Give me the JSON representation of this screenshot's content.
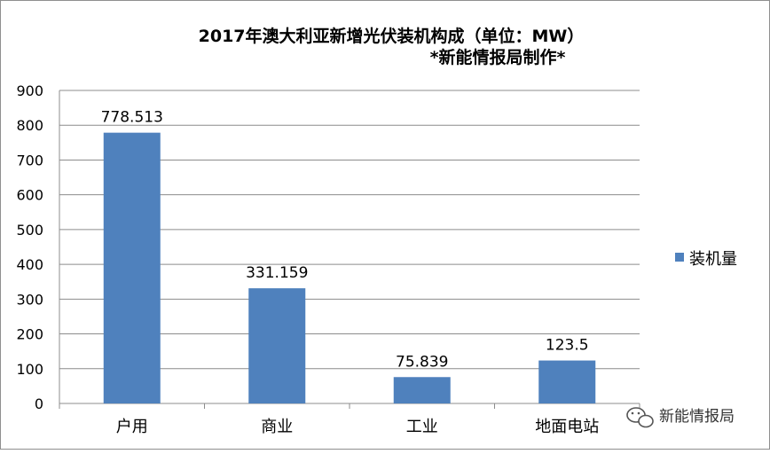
{
  "chart_data": {
    "type": "bar",
    "title": "2017年澳大利亚新增光伏装机构成（单位：MW）",
    "subtitle": "*新能情报局制作*",
    "categories": [
      "户用",
      "商业",
      "工业",
      "地面电站"
    ],
    "series": [
      {
        "name": "装机量",
        "values": [
          778.513,
          331.159,
          75.839,
          123.5
        ],
        "color": "#4f81bd"
      }
    ],
    "data_labels": [
      "778.513",
      "331.159",
      "75.839",
      "123.5"
    ],
    "ylim": [
      0,
      900
    ],
    "yticks": [
      "0",
      "100",
      "200",
      "300",
      "400",
      "500",
      "600",
      "700",
      "800",
      "900"
    ],
    "grid": true,
    "legend_position": "right"
  },
  "watermark": {
    "text": "新能情报局",
    "icon": "wechat-icon"
  }
}
